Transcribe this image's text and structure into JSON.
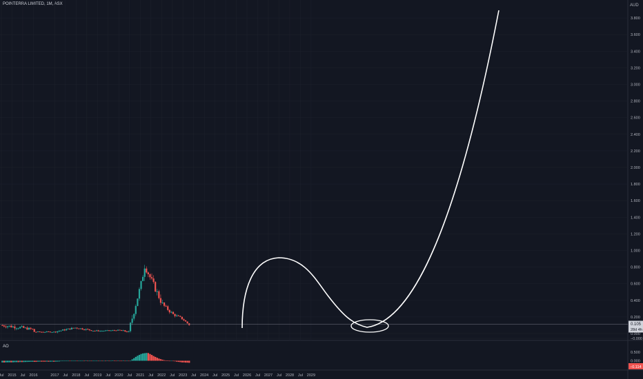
{
  "header": {
    "title": "POINTERRA LIMITED, 1M, ASX",
    "currency": "AUD"
  },
  "indicator": {
    "name": "AO",
    "last_value": "−0.114"
  },
  "price_label": {
    "value": "0.105",
    "countdown": "28d 4h"
  },
  "colors": {
    "background": "#131722",
    "up": "#26a69a",
    "down": "#ef5350",
    "grid": "#1e222d",
    "text": "#b2b5be",
    "drawing": "#ffffff"
  },
  "chart_data": [
    {
      "type": "candlestick",
      "title": "POINTERRA LIMITED, 1M, ASX",
      "y_unit": "AUD",
      "ylim": [
        -0.1,
        4.0
      ],
      "y_ticks": [
        "3.800",
        "3.600",
        "3.400",
        "3.200",
        "3.000",
        "2.800",
        "2.600",
        "2.400",
        "2.200",
        "2.000",
        "1.800",
        "1.600",
        "1.400",
        "1.200",
        "1.000",
        "0.800",
        "0.600",
        "0.400",
        "0.200",
        "0.000",
        "−0.000"
      ],
      "x_ticks": [
        "Jul",
        "2015",
        "Jul",
        "2016",
        "2017",
        "Jul",
        "2018",
        "Jul",
        "2019",
        "Jul",
        "2020",
        "Jul",
        "2021",
        "Jul",
        "2022",
        "Jul",
        "2023",
        "Jul",
        "2024",
        "Jul",
        "2025",
        "Jul",
        "2026",
        "Jul",
        "2027",
        "Jul",
        "2028",
        "Jul",
        "2029"
      ],
      "segments": [
        {
          "from": "2014-07",
          "months": 12,
          "open": 0.1,
          "close": 0.07,
          "spread": 0.04
        },
        {
          "from": "2015-07",
          "months": 6,
          "open": 0.07,
          "close": 0.05,
          "spread": 0.03
        },
        {
          "from": "2016-01",
          "months": 12,
          "open": 0.02,
          "close": 0.02,
          "spread": 0.01
        },
        {
          "from": "2017-01",
          "months": 12,
          "open": 0.02,
          "close": 0.07,
          "spread": 0.02
        },
        {
          "from": "2018-01",
          "months": 12,
          "open": 0.07,
          "close": 0.03,
          "spread": 0.02
        },
        {
          "from": "2019-01",
          "months": 12,
          "open": 0.03,
          "close": 0.04,
          "spread": 0.01
        },
        {
          "from": "2020-01",
          "months": 6,
          "open": 0.04,
          "close": 0.02,
          "spread": 0.02
        },
        {
          "from": "2020-07",
          "months": 7,
          "open": 0.02,
          "close": 0.6,
          "spread": 0.08
        },
        {
          "from": "2021-02",
          "months": 2,
          "open": 0.6,
          "close": 0.82,
          "spread": 0.1
        },
        {
          "from": "2021-04",
          "months": 10,
          "open": 0.82,
          "close": 0.35,
          "spread": 0.08
        },
        {
          "from": "2022-02",
          "months": 6,
          "open": 0.35,
          "close": 0.23,
          "spread": 0.04
        },
        {
          "from": "2022-08",
          "months": 5,
          "open": 0.23,
          "close": 0.18,
          "spread": 0.03
        },
        {
          "from": "2023-01",
          "months": 4,
          "open": 0.18,
          "close": 0.105,
          "spread": 0.02
        }
      ]
    },
    {
      "type": "histogram",
      "title": "AO",
      "ylim": [
        -0.15,
        0.5
      ],
      "y_ticks": [
        "0.500",
        "0.000"
      ],
      "last_value": "−0.114",
      "segments": [
        {
          "from": "2014-07",
          "months": 30,
          "start": -0.1,
          "end": -0.05
        },
        {
          "from": "2017-01",
          "months": 12,
          "start": -0.05,
          "end": 0.0
        },
        {
          "from": "2018-01",
          "months": 30,
          "start": 0.0,
          "end": 0.0
        },
        {
          "from": "2020-07",
          "months": 10,
          "start": 0.0,
          "end": 0.45
        },
        {
          "from": "2021-05",
          "months": 13,
          "start": 0.45,
          "end": 0.0
        },
        {
          "from": "2022-06",
          "months": 11,
          "start": 0.0,
          "end": -0.114
        }
      ]
    }
  ]
}
